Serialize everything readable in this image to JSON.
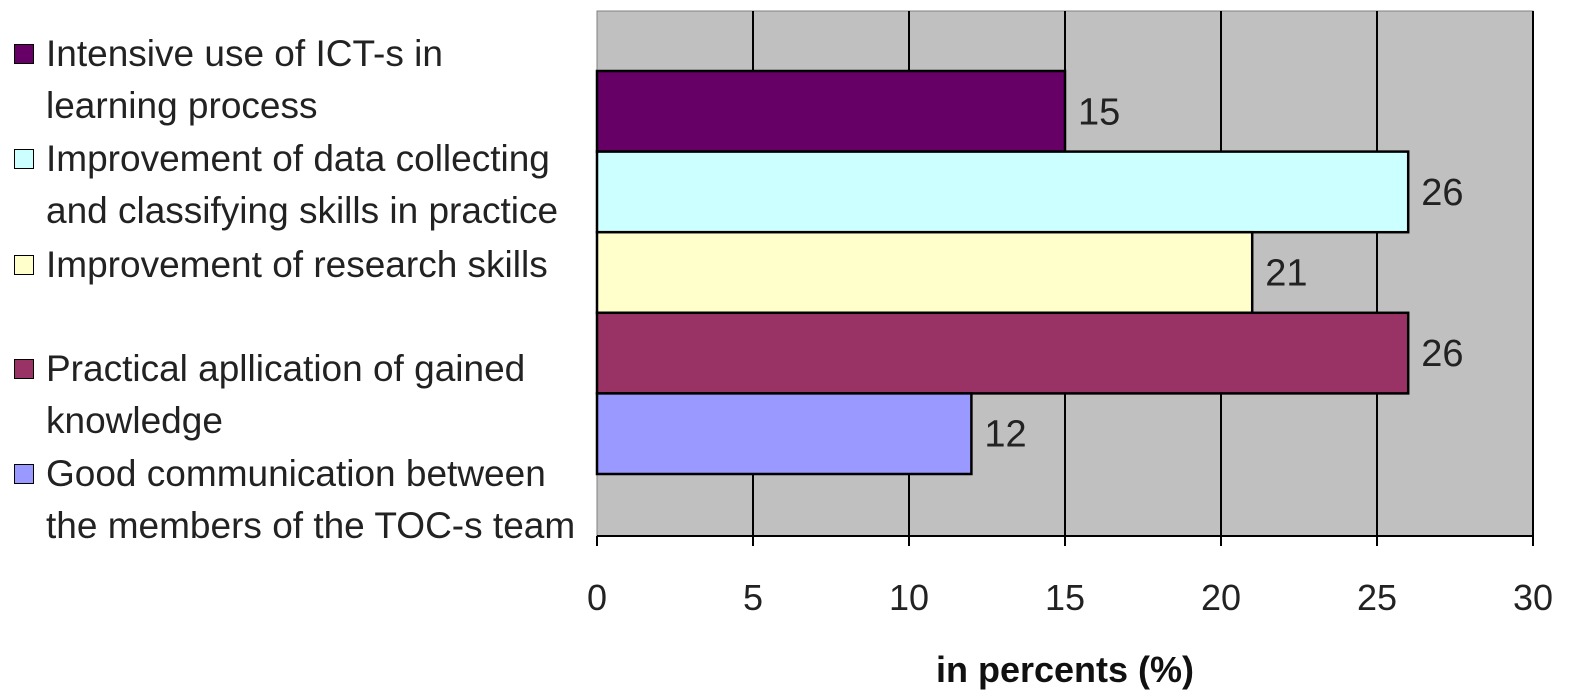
{
  "chart_data": {
    "type": "bar",
    "orientation": "horizontal",
    "categories": [
      "Intensive use of ICT-s in learning process",
      "Improvement of data collecting and classifying skills in practice",
      "Improvement of research skills",
      "Practical apllication of gained knowledge",
      "Good communication between the members of the TOC-s team"
    ],
    "values": [
      15,
      26,
      21,
      26,
      12
    ],
    "colors": [
      "#660066",
      "#CCFFFF",
      "#FFFFCC",
      "#993366",
      "#9999FF"
    ],
    "data_labels": [
      "15",
      "26",
      "21",
      "26",
      "12"
    ],
    "xlabel": "in percents (%)",
    "xlim": [
      0,
      30
    ],
    "xticks": [
      "0",
      "5",
      "10",
      "15",
      "20",
      "25",
      "30"
    ],
    "grid": true,
    "plot_background": "#C0C0C0",
    "legend_position": "left"
  }
}
